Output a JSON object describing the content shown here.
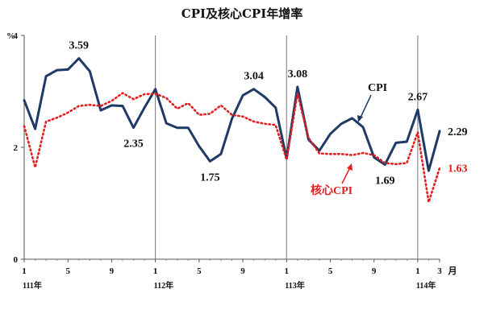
{
  "chart_data": {
    "type": "line",
    "title": "CPI及核心CPI年增率",
    "ylabel": "%",
    "ylim": [
      0,
      4
    ],
    "yticks": [
      "0",
      "2",
      "4"
    ],
    "x_end_label": "月",
    "x_month_ticks": [
      "1",
      "5",
      "9",
      "1",
      "5",
      "9",
      "1",
      "5",
      "9",
      "1",
      "3"
    ],
    "year_labels": [
      "111年",
      "112年",
      "113年",
      "114年"
    ],
    "series": [
      {
        "name": "CPI",
        "color": "#1f3a68",
        "style": "solid",
        "values": [
          2.84,
          2.33,
          3.27,
          3.38,
          3.39,
          3.59,
          3.36,
          2.66,
          2.75,
          2.74,
          2.35,
          2.71,
          3.04,
          2.43,
          2.35,
          2.35,
          2.02,
          1.75,
          1.88,
          2.51,
          2.93,
          3.04,
          2.9,
          2.71,
          1.8,
          3.08,
          2.14,
          1.94,
          2.24,
          2.42,
          2.52,
          2.36,
          1.82,
          1.69,
          2.08,
          2.1,
          2.67,
          1.58,
          2.29
        ]
      },
      {
        "name": "核心CPI",
        "color": "#e02020",
        "style": "dotted",
        "values": [
          2.38,
          1.64,
          2.46,
          2.53,
          2.62,
          2.74,
          2.76,
          2.74,
          2.83,
          2.97,
          2.86,
          2.95,
          2.96,
          2.88,
          2.69,
          2.79,
          2.58,
          2.6,
          2.75,
          2.58,
          2.55,
          2.46,
          2.42,
          2.4,
          1.78,
          2.96,
          2.17,
          1.89,
          1.88,
          1.88,
          1.86,
          1.9,
          1.86,
          1.72,
          1.7,
          1.72,
          2.27,
          1.02,
          1.63
        ]
      }
    ],
    "annotations": [
      {
        "text": "3.59",
        "series": 0,
        "index": 5,
        "pos": "above"
      },
      {
        "text": "2.35",
        "series": 0,
        "index": 10,
        "pos": "below"
      },
      {
        "text": "1.75",
        "series": 0,
        "index": 17,
        "pos": "below"
      },
      {
        "text": "3.04",
        "series": 0,
        "index": 21,
        "pos": "above"
      },
      {
        "text": "3.08",
        "series": 0,
        "index": 25,
        "pos": "above"
      },
      {
        "text": "1.69",
        "series": 0,
        "index": 33,
        "pos": "below"
      },
      {
        "text": "2.67",
        "series": 0,
        "index": 36,
        "pos": "above"
      },
      {
        "text": "2.29",
        "series": 0,
        "index": 38,
        "pos": "right"
      },
      {
        "text": "1.63",
        "series": 1,
        "index": 38,
        "pos": "right"
      }
    ],
    "grid": false,
    "legend": "inline"
  }
}
